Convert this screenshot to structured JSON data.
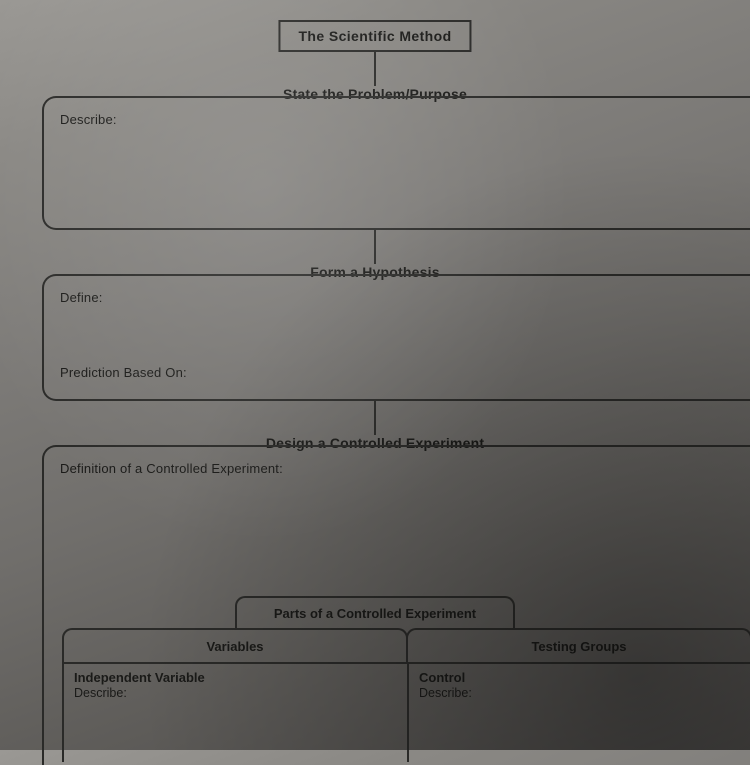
{
  "title": "The Scientific Method",
  "sections": {
    "problem": {
      "header": "State the Problem/Purpose",
      "describe_label": "Describe:"
    },
    "hypothesis": {
      "header": "Form a Hypothesis",
      "define_label": "Define:",
      "prediction_label": "Prediction Based On:"
    },
    "experiment": {
      "header": "Design a Controlled Experiment",
      "definition_label": "Definition of a Controlled Experiment:",
      "parts_header": "Parts of a Controlled Experiment",
      "columns": {
        "variables": "Variables",
        "testing_groups": "Testing Groups"
      },
      "left_cell": {
        "title": "Independent Variable",
        "sub": "Describe:"
      },
      "right_cell": {
        "title": "Control",
        "sub": "Describe:"
      }
    }
  },
  "style": {
    "border_color": "#2a2a28",
    "text_color": "#1a1a18",
    "title_fontsize": 14,
    "header_fontsize": 14,
    "label_fontsize": 13,
    "border_radius": 14,
    "tab_radius": 10
  }
}
